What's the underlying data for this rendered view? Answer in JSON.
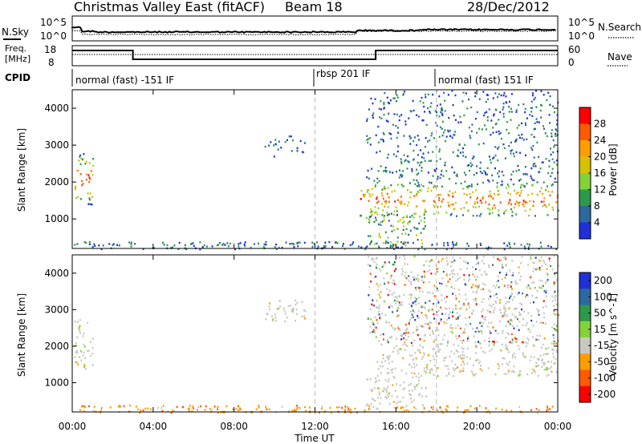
{
  "header": {
    "title": "Christmas Valley East (fitACF)",
    "beam": "Beam 18",
    "date": "28/Dec/2012"
  },
  "noise_panel": {
    "left_label": "N.Sky",
    "right_label": "N.Search",
    "ticks_left": [
      "10^5",
      "10^0"
    ],
    "ticks_right": [
      "10^5",
      "10^0"
    ]
  },
  "freq_panel": {
    "left_label_line1": "Freq.",
    "left_label_line2": "[MHz]",
    "right_label": "Nave",
    "ticks_left": [
      "18",
      "8"
    ],
    "ticks_right": [
      "60",
      "0"
    ]
  },
  "cpid": {
    "label": "CPID",
    "segments": [
      {
        "label": "normal (fast) -151 IF",
        "start_hour": 0
      },
      {
        "label": "rbsp 201 IF",
        "start_hour": 12
      },
      {
        "label": "normal (fast) 151 IF",
        "start_hour": 18
      }
    ]
  },
  "chart_data": [
    {
      "type": "heatmap",
      "quantity": "Power",
      "xlabel": "Time UT",
      "ylabel": "Slant Range [km]",
      "colorbar_label": "Power [dB]",
      "xlim": [
        0,
        24
      ],
      "ylim": [
        200,
        4500
      ],
      "yticks": [
        1000,
        2000,
        3000,
        4000
      ],
      "colorbar_ticks": [
        "28",
        "24",
        "20",
        "16",
        "12",
        "8",
        "4"
      ],
      "colors": [
        "#ff0000",
        "#ff5a00",
        "#ff9c00",
        "#d6c200",
        "#84d23a",
        "#2d9a4a",
        "#2b6aa0",
        "#2030d8"
      ],
      "regions": [
        {
          "t0": 0.1,
          "t1": 1.0,
          "r0": 1400,
          "r1": 2800,
          "level": "high"
        },
        {
          "t0": 9.5,
          "t1": 11.5,
          "r0": 2700,
          "r1": 3300,
          "level": "low"
        },
        {
          "t0": 14.2,
          "t1": 24.0,
          "r0": 1100,
          "r1": 2000,
          "level": "high"
        },
        {
          "t0": 14.5,
          "t1": 24.0,
          "r0": 2000,
          "r1": 4500,
          "level": "low"
        },
        {
          "t0": 14.5,
          "t1": 17.5,
          "r0": 300,
          "r1": 1200,
          "level": "mid"
        },
        {
          "t0": 0.0,
          "t1": 24.0,
          "r0": 200,
          "r1": 400,
          "level": "sparse"
        }
      ]
    },
    {
      "type": "heatmap",
      "quantity": "Velocity",
      "xlabel": "Time UT",
      "ylabel": "Slant Range [km]",
      "colorbar_label": "Velocity [m s^-1]",
      "xlim": [
        0,
        24
      ],
      "ylim": [
        200,
        4500
      ],
      "yticks": [
        1000,
        2000,
        3000,
        4000
      ],
      "xticks": [
        "00:00",
        "04:00",
        "08:00",
        "12:00",
        "16:00",
        "20:00",
        "00:00"
      ],
      "colorbar_ticks": [
        "200",
        "100",
        "50",
        "15",
        "-15",
        "-50",
        "-100",
        "-200"
      ],
      "colors": [
        "#2030d8",
        "#2b6aa0",
        "#2d9a4a",
        "#84d23a",
        "#c8c8c0",
        "#ff9c00",
        "#ff5a00",
        "#ff0000"
      ],
      "regions": [
        {
          "t0": 0.1,
          "t1": 1.0,
          "r0": 1400,
          "r1": 2800,
          "level": "ground"
        },
        {
          "t0": 9.5,
          "t1": 11.5,
          "r0": 2700,
          "r1": 3300,
          "level": "ground"
        },
        {
          "t0": 15.0,
          "t1": 24.0,
          "r0": 1200,
          "r1": 2100,
          "level": "ground"
        },
        {
          "t0": 14.5,
          "t1": 24.0,
          "r0": 2100,
          "r1": 4500,
          "level": "mixed"
        },
        {
          "t0": 14.5,
          "t1": 17.5,
          "r0": 300,
          "r1": 1200,
          "level": "ground"
        },
        {
          "t0": 0.0,
          "t1": 24.0,
          "r0": 200,
          "r1": 400,
          "level": "negative"
        }
      ]
    }
  ]
}
